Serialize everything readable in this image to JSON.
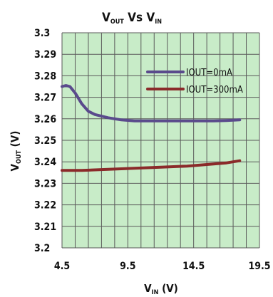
{
  "chart_data": {
    "type": "line",
    "title": {
      "main": "V",
      "sub1": "OUT",
      "middle": " Vs  V",
      "sub2": "IN"
    },
    "xlabel": {
      "main": "V",
      "sub": "IN",
      "rest": " (V)"
    },
    "ylabel": {
      "main": "V",
      "sub": "OUT",
      "rest": " (V)"
    },
    "xlim": [
      4.5,
      19.5
    ],
    "ylim": [
      3.2,
      3.3
    ],
    "x_ticks": [
      "4.5",
      "9.5",
      "14.5",
      "19.5"
    ],
    "y_ticks": [
      "3.3",
      "3.29",
      "3.28",
      "3.27",
      "3.26",
      "3.25",
      "3.24",
      "3.23",
      "3.22",
      "3.21",
      "3.2"
    ],
    "grid": true,
    "legend_position": "top-right",
    "background_color": "#c8ecc8",
    "grid_color": "#5a5a5a",
    "series": [
      {
        "name": "IOUT=0mA",
        "color": "#5a4a8c",
        "x": [
          4.5,
          4.8,
          5.1,
          5.5,
          6.0,
          6.5,
          7.0,
          8.0,
          9.0,
          10.0,
          11.0,
          12.0,
          13.0,
          14.0,
          15.0,
          16.0,
          17.0,
          18.0
        ],
        "y": [
          3.275,
          3.2755,
          3.275,
          3.272,
          3.267,
          3.2635,
          3.262,
          3.2605,
          3.2595,
          3.259,
          3.259,
          3.259,
          3.259,
          3.259,
          3.259,
          3.259,
          3.2592,
          3.2595
        ]
      },
      {
        "name": "IOUT=300mA",
        "color": "#8b2a2a",
        "x": [
          4.5,
          6.0,
          8.0,
          10.0,
          12.0,
          14.0,
          15.0,
          16.0,
          17.0,
          18.0
        ],
        "y": [
          3.236,
          3.236,
          3.2365,
          3.237,
          3.2375,
          3.238,
          3.2385,
          3.239,
          3.2395,
          3.2405
        ]
      }
    ]
  }
}
